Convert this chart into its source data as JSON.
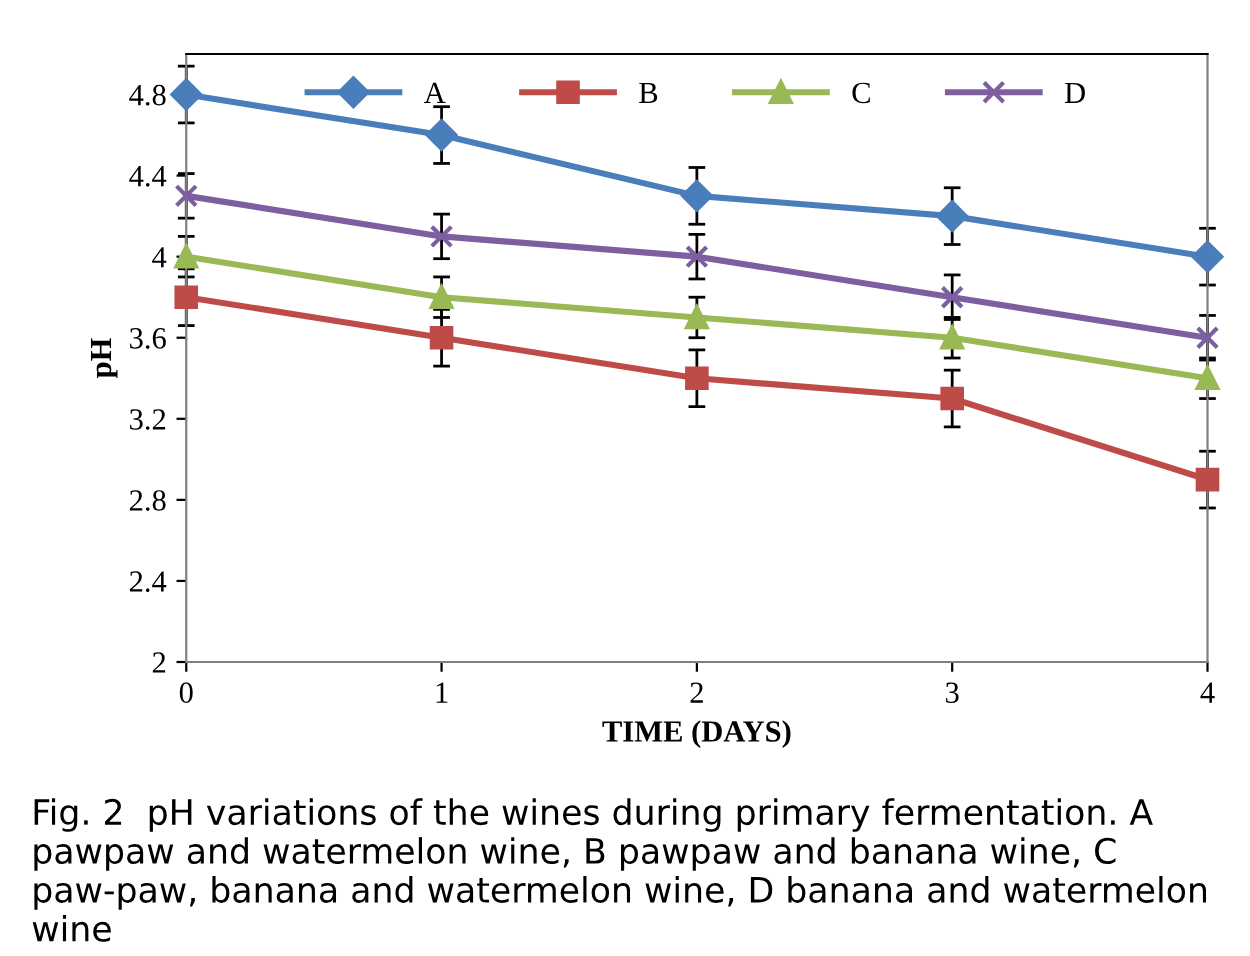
{
  "chart_data": {
    "type": "line",
    "xlabel": "TIME (DAYS)",
    "ylabel": "pH",
    "x": [
      0,
      1,
      2,
      3,
      4
    ],
    "series": [
      {
        "name": "A",
        "color": "#4a7ebb",
        "marker": "diamond",
        "values": [
          4.8,
          4.6,
          4.3,
          4.2,
          4.0
        ],
        "errors": [
          0.14,
          0.14,
          0.14,
          0.14,
          0.14
        ]
      },
      {
        "name": "B",
        "color": "#be4b48",
        "marker": "square",
        "values": [
          3.8,
          3.6,
          3.4,
          3.3,
          2.9
        ],
        "errors": [
          0.14,
          0.14,
          0.14,
          0.14,
          0.14
        ]
      },
      {
        "name": "C",
        "color": "#98b954",
        "marker": "triangle",
        "values": [
          4.0,
          3.8,
          3.7,
          3.6,
          3.4
        ],
        "errors": [
          0.1,
          0.1,
          0.1,
          0.1,
          0.1
        ]
      },
      {
        "name": "D",
        "color": "#7d5fa0",
        "marker": "cross",
        "values": [
          4.3,
          4.1,
          4.0,
          3.8,
          3.6
        ],
        "errors": [
          0.11,
          0.11,
          0.11,
          0.11,
          0.11
        ]
      }
    ],
    "xlim": [
      0,
      4
    ],
    "xticks": [
      0,
      1,
      2,
      3,
      4
    ],
    "ylim": [
      2,
      5
    ],
    "yticks": [
      2,
      2.4,
      2.8,
      3.2,
      3.6,
      4,
      4.4,
      4.8
    ],
    "grid": false,
    "legend": "top",
    "annotations": [
      "Fig. 2  pH variations of the wines during primary fermentation. A pawpaw and watermelon wine, B pawpaw and banana wine, C paw-paw, banana and watermelon wine, D banana and watermelon wine"
    ]
  }
}
